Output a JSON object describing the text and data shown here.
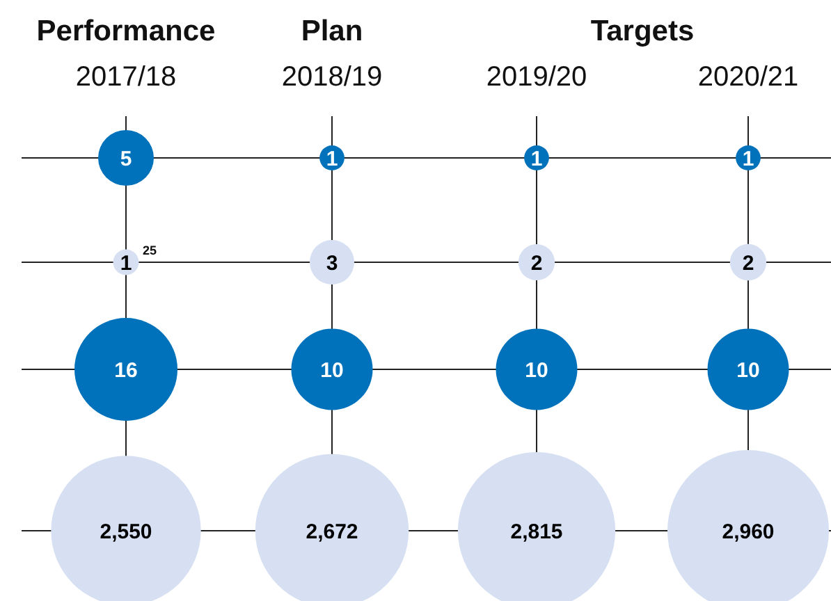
{
  "chart_data": {
    "type": "other",
    "data_labels": true,
    "categories": [
      "2017/18",
      "2018/19",
      "2019/20",
      "2020/21"
    ],
    "annotations": [
      "Performance",
      "Plan",
      "Targets",
      "25"
    ],
    "series": [
      {
        "color": "#0072bc",
        "values": [
          5,
          1,
          1,
          1
        ]
      },
      {
        "color": "#d6e0f2",
        "values": [
          1,
          3,
          2,
          2
        ]
      },
      {
        "color": "#0072bc",
        "values": [
          16,
          10,
          10,
          10
        ]
      },
      {
        "color": "#d6e0f2",
        "values": [
          2550,
          2672,
          2815,
          2960
        ],
        "value_labels": [
          "2,550",
          "2,672",
          "2,815",
          "2,960"
        ]
      }
    ]
  }
}
